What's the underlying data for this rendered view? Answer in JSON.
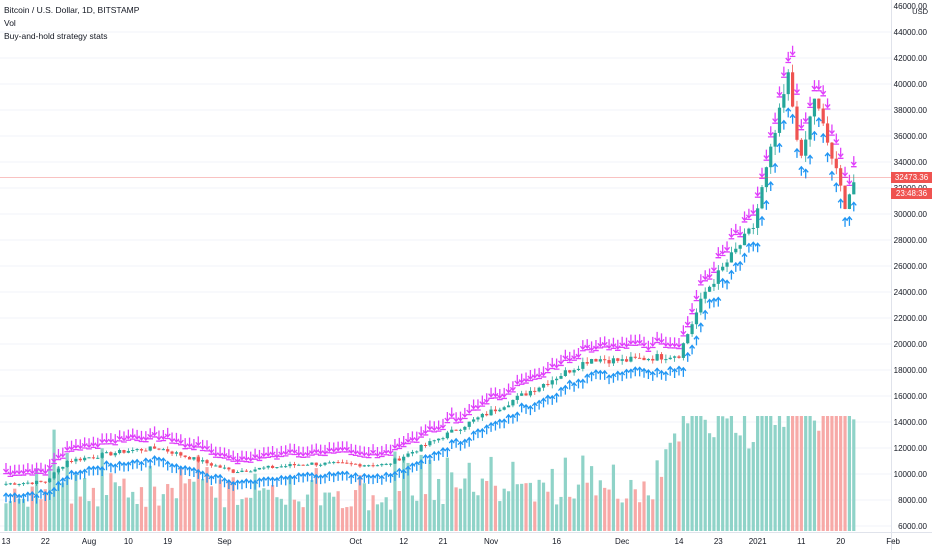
{
  "header": {
    "symbol_line": "Bitcoin / U.S. Dollar, 1D, BITSTAMP",
    "indicator_vol": "Vol",
    "indicator_strategy": "Buy-and-hold strategy stats"
  },
  "price_axis": {
    "currency": "USD",
    "ticks": [
      "46000.00",
      "44000.00",
      "42000.00",
      "40000.00",
      "38000.00",
      "36000.00",
      "34000.00",
      "32000.00",
      "30000.00",
      "28000.00",
      "26000.00",
      "24000.00",
      "22000.00",
      "20000.00",
      "18000.00",
      "16000.00",
      "14000.00",
      "12000.00",
      "10000.00",
      "8000.00",
      "6000.00"
    ],
    "last_price": "32473.36",
    "countdown": "23:48:36"
  },
  "time_axis": {
    "ticks": [
      "13",
      "22",
      "Aug",
      "10",
      "19",
      "Sep",
      "Oct",
      "12",
      "21",
      "Nov",
      "16",
      "Dec",
      "14",
      "23",
      "2021",
      "11",
      "20",
      "Feb"
    ]
  },
  "colors": {
    "up": "#26a69a",
    "down": "#ef5350",
    "vol_up": "#8fd3c8",
    "vol_down": "#f7a9a7",
    "sell_marker": "#e040fb",
    "buy_marker": "#2196f3",
    "last_price": "#ef5350"
  },
  "chart_data": {
    "type": "candlestick",
    "x_range": [
      "2020-07-13",
      "2021-01-27"
    ],
    "price_anchors": [
      {
        "date": "2020-07-13",
        "price": 9250
      },
      {
        "date": "2020-07-22",
        "price": 9400
      },
      {
        "date": "2020-07-27",
        "price": 11000
      },
      {
        "date": "2020-08-10",
        "price": 11800
      },
      {
        "date": "2020-08-17",
        "price": 12000
      },
      {
        "date": "2020-09-03",
        "price": 10200
      },
      {
        "date": "2020-09-20",
        "price": 10800
      },
      {
        "date": "2020-10-08",
        "price": 10700
      },
      {
        "date": "2020-10-21",
        "price": 12900
      },
      {
        "date": "2020-11-05",
        "price": 15500
      },
      {
        "date": "2020-11-24",
        "price": 18900
      },
      {
        "date": "2020-12-01",
        "price": 18700
      },
      {
        "date": "2020-12-14",
        "price": 19200
      },
      {
        "date": "2020-12-20",
        "price": 24000
      },
      {
        "date": "2020-12-31",
        "price": 29000
      },
      {
        "date": "2021-01-08",
        "price": 40500
      },
      {
        "date": "2021-01-11",
        "price": 34000
      },
      {
        "date": "2021-01-14",
        "price": 39000
      },
      {
        "date": "2021-01-21",
        "price": 30800
      },
      {
        "date": "2021-01-23",
        "price": 32473
      }
    ],
    "volume_range": [
      0,
      10
    ]
  }
}
